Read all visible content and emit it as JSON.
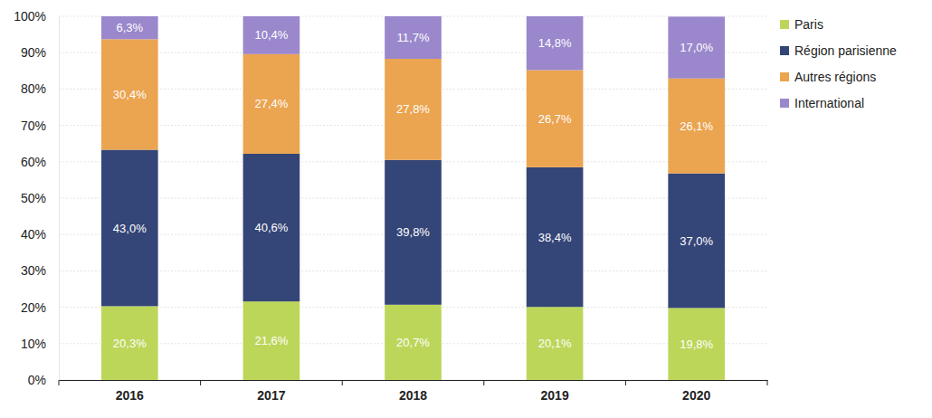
{
  "chart_data": {
    "type": "bar",
    "stacked": true,
    "data_labels": true,
    "grid": true,
    "legend": "right",
    "categories": [
      "2016",
      "2017",
      "2018",
      "2019",
      "2020"
    ],
    "ylim": [
      0,
      100
    ],
    "yticks": [
      {
        "value": 0,
        "label": "0%"
      },
      {
        "value": 10,
        "label": "10%"
      },
      {
        "value": 20,
        "label": "20%"
      },
      {
        "value": 30,
        "label": "30%"
      },
      {
        "value": 40,
        "label": "40%"
      },
      {
        "value": 50,
        "label": "50%"
      },
      {
        "value": 60,
        "label": "60%"
      },
      {
        "value": 70,
        "label": "70%"
      },
      {
        "value": 80,
        "label": "80%"
      },
      {
        "value": 90,
        "label": "90%"
      },
      {
        "value": 100,
        "label": "100%"
      }
    ],
    "series": [
      {
        "name": "Paris",
        "color": "#bcd65a",
        "values": [
          20.3,
          21.6,
          20.7,
          20.1,
          19.8
        ],
        "value_labels": [
          "20,3%",
          "21,6%",
          "20,7%",
          "20,1%",
          "19,8%"
        ]
      },
      {
        "name": "Région parisienne",
        "color": "#344577",
        "values": [
          43.0,
          40.6,
          39.8,
          38.4,
          37.0
        ],
        "value_labels": [
          "43,0%",
          "40,6%",
          "39,8%",
          "38,4%",
          "37,0%"
        ]
      },
      {
        "name": "Autres régions",
        "color": "#eba450",
        "values": [
          30.4,
          27.4,
          27.8,
          26.7,
          26.1
        ],
        "value_labels": [
          "30,4%",
          "27,4%",
          "27,8%",
          "26,7%",
          "26,1%"
        ]
      },
      {
        "name": "International",
        "color": "#9a87cc",
        "values": [
          6.3,
          10.4,
          11.7,
          14.8,
          17.0
        ],
        "value_labels": [
          "6,3%",
          "10,4%",
          "11,7%",
          "14,8%",
          "17,0%"
        ]
      }
    ]
  }
}
